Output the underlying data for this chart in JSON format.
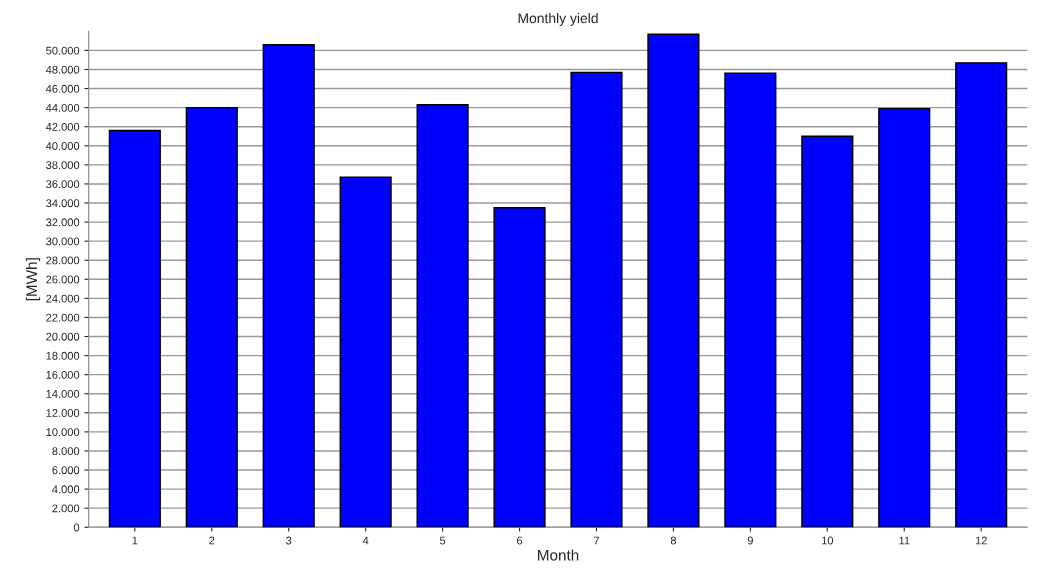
{
  "chart_data": {
    "type": "bar",
    "title": "Monthly yield",
    "xlabel": "Month",
    "ylabel": "[MWh]",
    "categories": [
      "1",
      "2",
      "3",
      "4",
      "5",
      "6",
      "7",
      "8",
      "9",
      "10",
      "11",
      "12"
    ],
    "values": [
      41600,
      44000,
      50600,
      36700,
      44300,
      33500,
      47700,
      51700,
      47600,
      41000,
      43900,
      48700
    ],
    "color": "#0000ff",
    "ylim": [
      0,
      52000
    ],
    "yticks": [
      {
        "value": 0,
        "label": "0"
      },
      {
        "value": 2000,
        "label": "2.000"
      },
      {
        "value": 4000,
        "label": "4.000"
      },
      {
        "value": 6000,
        "label": "6.000"
      },
      {
        "value": 8000,
        "label": "8.000"
      },
      {
        "value": 10000,
        "label": "10.000"
      },
      {
        "value": 12000,
        "label": "12.000"
      },
      {
        "value": 14000,
        "label": "14.000"
      },
      {
        "value": 16000,
        "label": "16.000"
      },
      {
        "value": 18000,
        "label": "18.000"
      },
      {
        "value": 20000,
        "label": "20.000"
      },
      {
        "value": 22000,
        "label": "22.000"
      },
      {
        "value": 24000,
        "label": "24.000"
      },
      {
        "value": 26000,
        "label": "26.000"
      },
      {
        "value": 28000,
        "label": "28.000"
      },
      {
        "value": 30000,
        "label": "30.000"
      },
      {
        "value": 32000,
        "label": "32.000"
      },
      {
        "value": 34000,
        "label": "34.000"
      },
      {
        "value": 36000,
        "label": "36.000"
      },
      {
        "value": 38000,
        "label": "38.000"
      },
      {
        "value": 40000,
        "label": "40.000"
      },
      {
        "value": 42000,
        "label": "42.000"
      },
      {
        "value": 44000,
        "label": "44.000"
      },
      {
        "value": 46000,
        "label": "46.000"
      },
      {
        "value": 48000,
        "label": "48.000"
      },
      {
        "value": 50000,
        "label": "50.000"
      }
    ],
    "grid": "y"
  }
}
